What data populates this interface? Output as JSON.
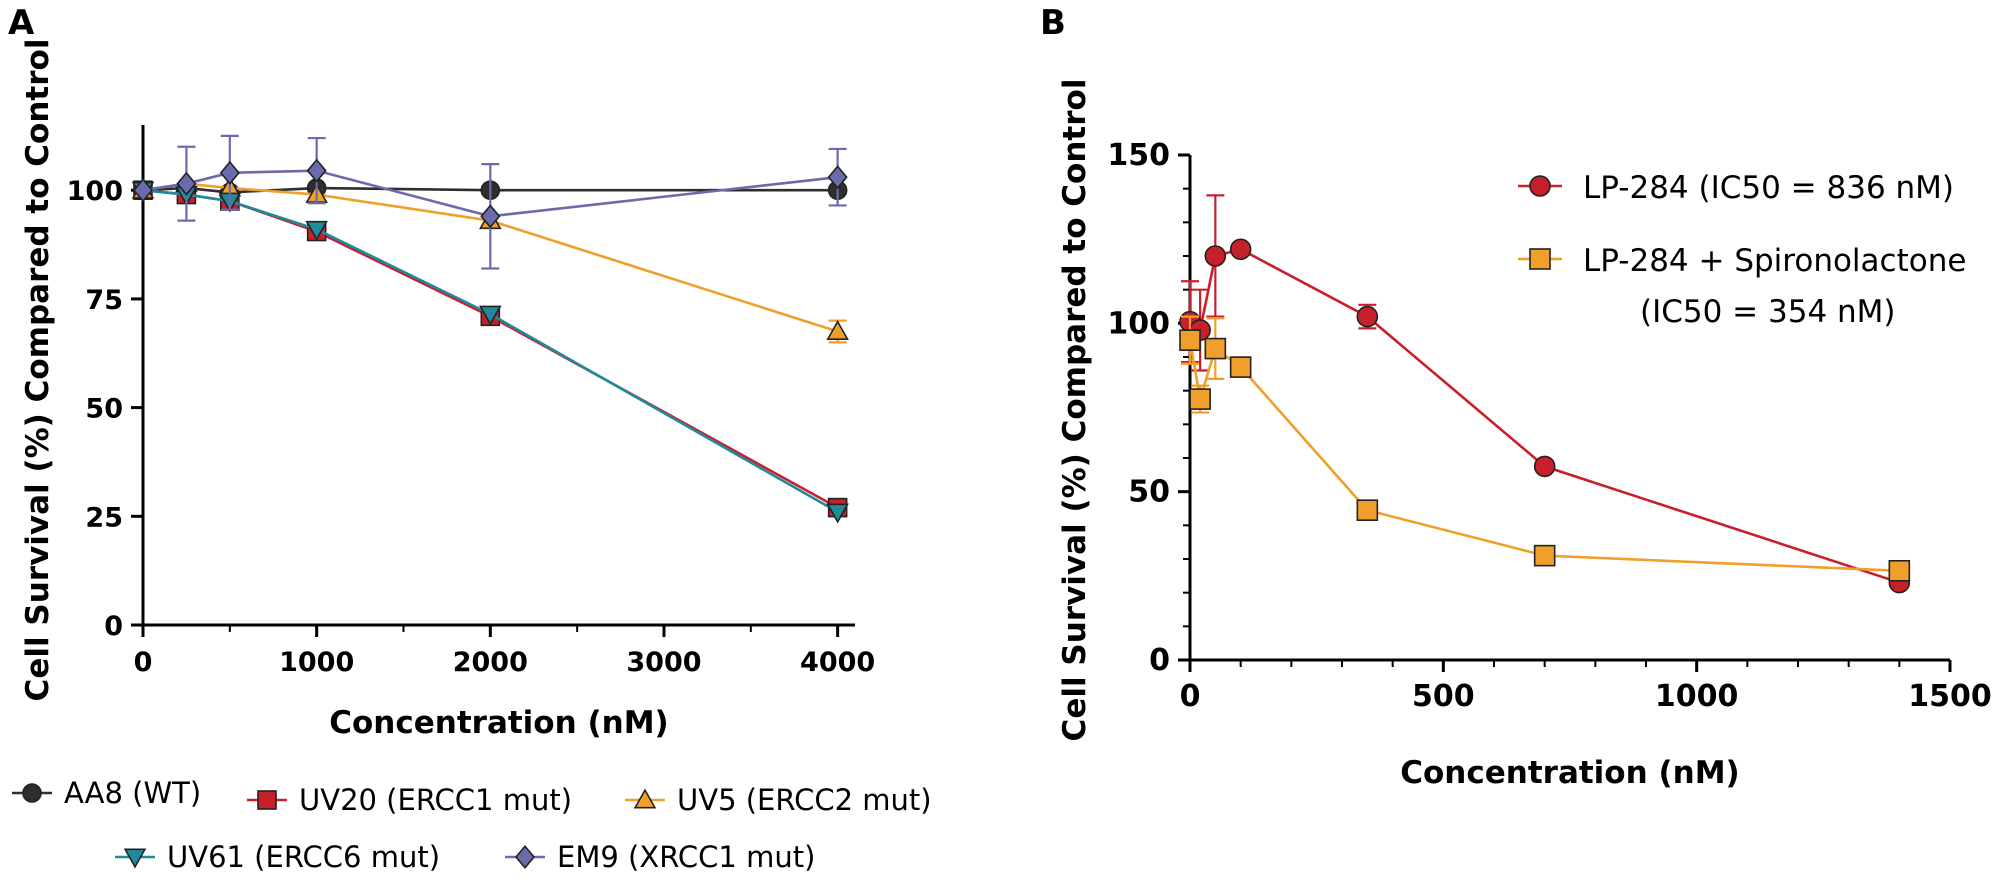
{
  "panels": [
    {
      "letter": "A",
      "chart_data": {
        "type": "line",
        "title": "",
        "xlabel": "Concentration (nM)",
        "ylabel": "Cell Survival (%) Compared to Control",
        "xlim": [
          0,
          4100
        ],
        "ylim": [
          0,
          115
        ],
        "xticks": [
          0,
          1000,
          2000,
          3000,
          4000
        ],
        "yticks": [
          0,
          25,
          50,
          75,
          100
        ],
        "grid": false,
        "legend_position": "bottom",
        "series": [
          {
            "name": "AA8 (WT)",
            "color": "#2e2e2e",
            "marker": "circle",
            "x": [
              0,
              250,
              500,
              1000,
              2000,
              4000
            ],
            "values": [
              100,
              100.5,
              99.5,
              100.5,
              100,
              100
            ],
            "err": [
              0,
              0,
              0,
              0,
              0,
              0
            ]
          },
          {
            "name": "UV20 (ERCC1 mut)",
            "color": "#c8202b",
            "marker": "square",
            "x": [
              0,
              250,
              500,
              1000,
              2000,
              4000
            ],
            "values": [
              100,
              99,
              97.5,
              90.5,
              71,
              27
            ],
            "err": [
              0,
              0,
              0,
              0,
              0,
              0
            ]
          },
          {
            "name": "UV5 (ERCC2 mut)",
            "color": "#f0a02a",
            "marker": "triangle-up",
            "x": [
              0,
              250,
              500,
              1000,
              2000,
              4000
            ],
            "values": [
              100,
              101.5,
              100.5,
              99,
              93,
              67.5
            ],
            "err": [
              0,
              0,
              0,
              0,
              0,
              2.5
            ]
          },
          {
            "name": "UV61 (ERCC6 mut)",
            "color": "#1f8a9e",
            "marker": "triangle-down",
            "x": [
              0,
              250,
              500,
              1000,
              2000,
              4000
            ],
            "values": [
              100,
              99,
              97.5,
              91,
              71.5,
              26
            ],
            "err": [
              0,
              0,
              0,
              0,
              0,
              0
            ]
          },
          {
            "name": "EM9 (XRCC1 mut)",
            "color": "#6b6bab",
            "marker": "diamond",
            "x": [
              0,
              250,
              500,
              1000,
              2000,
              4000
            ],
            "values": [
              100,
              101.5,
              104,
              104.5,
              94,
              103
            ],
            "err": [
              0,
              8.5,
              8.5,
              7.5,
              12,
              6.5
            ]
          }
        ]
      }
    },
    {
      "letter": "B",
      "chart_data": {
        "type": "line",
        "title": "",
        "xlabel": "Concentration (nM)",
        "ylabel": "Cell Survival (%) Compared to Control",
        "xlim": [
          0,
          1500
        ],
        "ylim": [
          0,
          150
        ],
        "xticks": [
          0,
          500,
          1000,
          1500
        ],
        "yticks": [
          0,
          50,
          100,
          150
        ],
        "grid": false,
        "legend_position": "top-right",
        "series": [
          {
            "name": "LP-284 (IC50 = 836 nM)",
            "color": "#c8202b",
            "marker": "circle",
            "x": [
              0,
              20,
              50,
              100,
              350,
              700,
              1400
            ],
            "values": [
              100.5,
              98,
              120,
              122,
              102,
              57.5,
              23
            ],
            "err": [
              12,
              12,
              18,
              0,
              3.5,
              0,
              0
            ]
          },
          {
            "name": "LP-284 + Spironolactone\n(IC50 = 354 nM)",
            "color": "#f0a02a",
            "marker": "square",
            "x": [
              0,
              20,
              50,
              100,
              350,
              700,
              1400
            ],
            "values": [
              95,
              77.5,
              92.5,
              87,
              44.5,
              31,
              26.5
            ],
            "err": [
              7,
              4,
              9,
              0,
              0,
              0,
              0
            ]
          }
        ]
      }
    }
  ]
}
